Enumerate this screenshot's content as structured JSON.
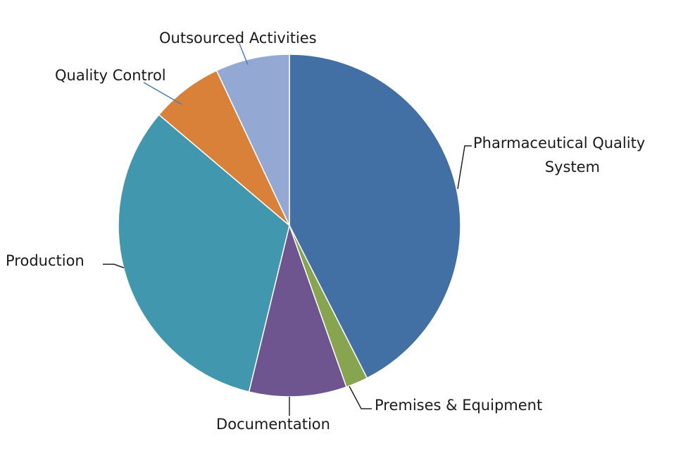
{
  "chart_data": {
    "type": "pie",
    "title": "",
    "start_angle_deg": 0,
    "direction": "clockwise",
    "slices": [
      {
        "label": "Pharmaceutical Quality System",
        "value": 42.5,
        "color": "#4270a4"
      },
      {
        "label": "Premises & Equipment",
        "value": 2.1,
        "color": "#86a54e"
      },
      {
        "label": "Documentation",
        "value": 9.2,
        "color": "#6e558f"
      },
      {
        "label": "Production",
        "value": 32.4,
        "color": "#4097ae"
      },
      {
        "label": "Quality Control",
        "value": 6.8,
        "color": "#d98138"
      },
      {
        "label": "Outsourced Activities",
        "value": 7.0,
        "color": "#93a8d2"
      }
    ],
    "legend": "none",
    "data_labels": "category names with leader lines"
  }
}
